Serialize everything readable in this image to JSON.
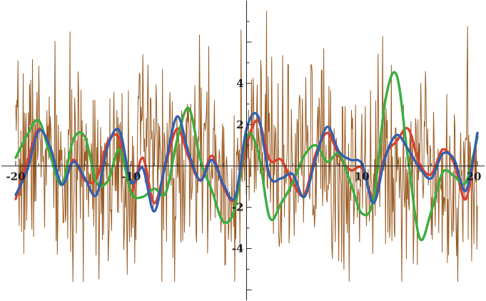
{
  "chart_data": {
    "type": "line",
    "title": "",
    "xlabel": "",
    "ylabel": "",
    "xlim": [
      -20,
      20
    ],
    "ylim": [
      -6.4,
      7.9
    ],
    "grid": false,
    "legend": "none",
    "x_ticks": [
      -20,
      -10,
      10,
      20
    ],
    "x_tick_labels": [
      "-20",
      "-10",
      "10",
      "20"
    ],
    "y_ticks": [
      -4,
      -2,
      2,
      4
    ],
    "y_tick_labels": [
      "-4",
      "-2",
      "2",
      "4"
    ],
    "noise": {
      "color": "#9a5b22",
      "seed": 7,
      "count": 800,
      "x_range": [
        -20,
        20
      ],
      "amplitude": 2.3
    },
    "series": [
      {
        "color": "#d9412e",
        "x": [
          -20,
          -19,
          -18,
          -17,
          -16,
          -15,
          -14,
          -13,
          -12,
          -11,
          -10,
          -9,
          -8,
          -7,
          -6,
          -5,
          -4,
          -3,
          -2,
          -1,
          0,
          1,
          2,
          3,
          4,
          5,
          6,
          7,
          8,
          9,
          10,
          11,
          12,
          13,
          14,
          15,
          16,
          17,
          18,
          19,
          20
        ],
        "y": [
          -1.6,
          0.2,
          1.8,
          0.8,
          -0.9,
          0.3,
          -0.7,
          -0.6,
          1.2,
          1.3,
          -1.2,
          0.4,
          -1.8,
          0.1,
          1.8,
          0.4,
          -0.7,
          0.5,
          -1.0,
          -1.6,
          1.0,
          2.2,
          0.3,
          0.3,
          -0.8,
          -1.4,
          0.6,
          1.6,
          0.5,
          -0.2,
          -0.1,
          -1.5,
          0.5,
          1.2,
          1.8,
          0.1,
          -0.4,
          0.8,
          0.1,
          -1.6,
          1.6
        ]
      },
      {
        "color": "#3aad3f",
        "x": [
          -20,
          -19,
          -18,
          -17,
          -16,
          -15,
          -14,
          -13,
          -12,
          -11,
          -10,
          -9,
          -8,
          -7,
          -6,
          -5,
          -4,
          -3,
          -2,
          -1,
          0,
          1,
          2,
          3,
          4,
          5,
          6,
          7,
          8,
          9,
          10,
          11,
          12,
          13,
          14,
          15,
          16,
          17,
          18,
          19,
          20
        ],
        "y": [
          0.4,
          1.5,
          2.2,
          0.5,
          -0.9,
          1.3,
          1.4,
          -0.8,
          -0.7,
          0.8,
          -1.3,
          -1.5,
          -1.1,
          -1.3,
          1.3,
          2.8,
          0.3,
          -1.2,
          -2.7,
          -2.0,
          1.4,
          0.7,
          -2.5,
          -1.8,
          -0.8,
          0.5,
          1.0,
          0.2,
          0.6,
          -0.8,
          -2.3,
          -1.6,
          3.1,
          4.4,
          0.3,
          -3.5,
          -2.2,
          -0.3,
          -0.5,
          -0.8,
          1.4
        ]
      },
      {
        "color": "#3360b0",
        "x": [
          -20,
          -19,
          -18,
          -17,
          -16,
          -15,
          -14,
          -13,
          -12,
          -11,
          -10,
          -9,
          -8,
          -7,
          -6,
          -5,
          -4,
          -3,
          -2,
          -1,
          0,
          1,
          2,
          3,
          4,
          5,
          6,
          7,
          8,
          9,
          10,
          11,
          12,
          13,
          14,
          15,
          16,
          17,
          18,
          19,
          20
        ],
        "y": [
          -1.4,
          -0.2,
          1.7,
          0.9,
          -0.9,
          0.2,
          -0.6,
          -1.4,
          1.0,
          1.7,
          -0.8,
          -0.1,
          -2.2,
          0.2,
          2.4,
          0.6,
          -0.7,
          0.3,
          -0.9,
          -1.5,
          1.8,
          2.4,
          -0.5,
          -0.6,
          -0.4,
          -1.5,
          0.4,
          1.9,
          0.7,
          0.3,
          0.1,
          -1.8,
          0.4,
          1.5,
          0.8,
          -0.1,
          -0.6,
          0.6,
          0.3,
          -1.2,
          1.6
        ]
      }
    ]
  }
}
